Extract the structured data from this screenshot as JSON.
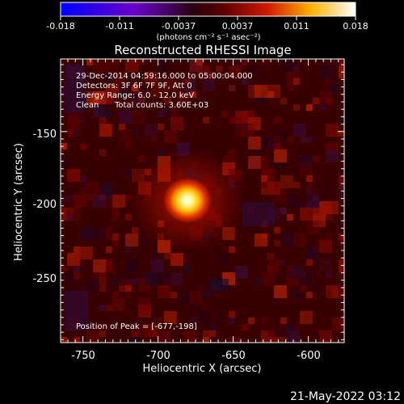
{
  "colorbar": {
    "ticks": [
      "-0.018",
      "-0.011",
      "-0.0037",
      "0.0037",
      "0.011",
      "0.018"
    ],
    "units": "(photons cm⁻² s⁻¹ asec⁻²)",
    "min": -0.018,
    "max": 0.018
  },
  "title": "Reconstructed RHESSI Image",
  "info": {
    "line1": "29-Dec-2014 04:59:16.000 to 05:00:04.000",
    "line2": "Detectors: 3F 6F 7F 9F, Att 0",
    "line3": "Energy Range: 6.0 - 12.0 keV",
    "line4_a": "Clean",
    "line4_b": "Total counts: 3.60E+03"
  },
  "peak_label": "Position of Peak = [-677,-198]",
  "axes": {
    "xlabel": "Heliocentric X (arcsec)",
    "ylabel": "Heliocentric Y (arcsec)",
    "xticks": [
      "-750",
      "-700",
      "-650",
      "-600"
    ],
    "yticks": [
      "-150",
      "-200",
      "-250"
    ],
    "xlim": [
      -765,
      -575
    ],
    "ylim": [
      -292,
      -118
    ]
  },
  "peak": {
    "x": -677,
    "y": -198
  },
  "timestamp": "21-May-2022 03:12"
}
